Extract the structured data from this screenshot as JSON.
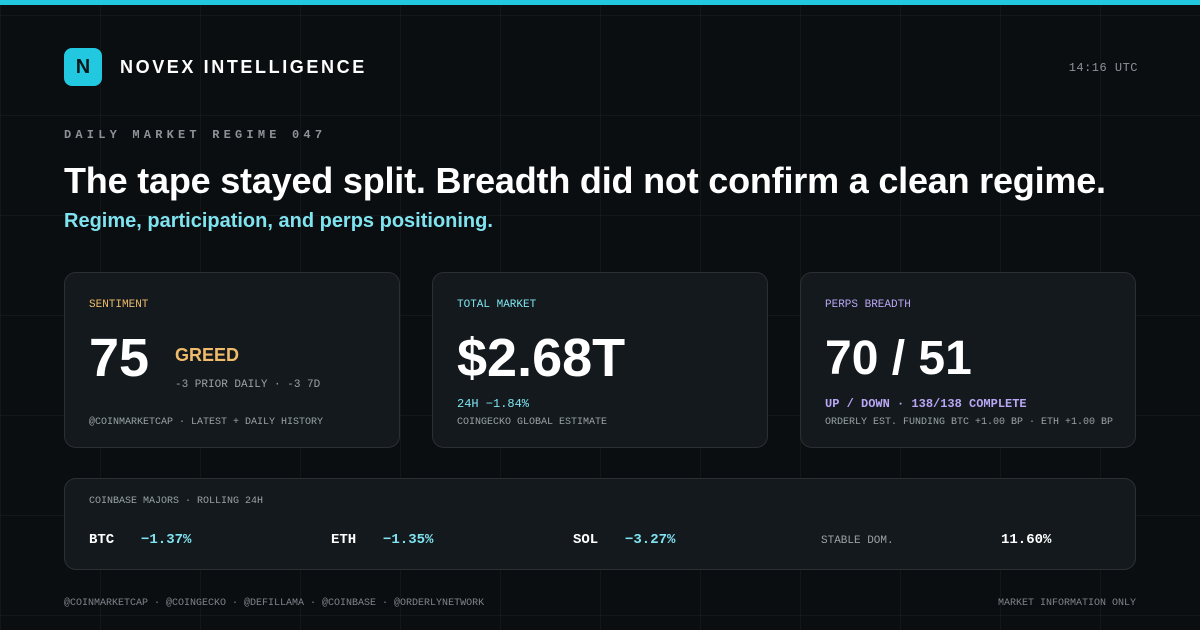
{
  "brand": {
    "logo": "N",
    "name": "NOVEX INTELLIGENCE",
    "time": "14:16 UTC"
  },
  "header": {
    "kicker": "DAILY MARKET REGIME 047",
    "title": "The tape stayed split. Breadth did not confirm a clean regime.",
    "subtitle": "Regime, participation, and perps positioning."
  },
  "cards": [
    {
      "label": "SENTIMENT",
      "value": "75",
      "badge": "GREED",
      "detail": "-3 PRIOR DAILY · -3 7D",
      "source": "@COINMARKETCAP · LATEST + DAILY HISTORY"
    },
    {
      "label": "TOTAL MARKET",
      "value": "$2.68T",
      "detail": "24H −1.84%",
      "source": "COINGECKO GLOBAL ESTIMATE"
    },
    {
      "label": "PERPS BREADTH",
      "value": "70 / 51",
      "detail": "UP / DOWN · 138/138 COMPLETE",
      "source": "ORDERLY EST. FUNDING BTC +1.00 BP · ETH +1.00 BP"
    }
  ],
  "majors": {
    "label": "COINBASE MAJORS · ROLLING 24H",
    "items": [
      {
        "name": "BTC",
        "value": "−1.37%"
      },
      {
        "name": "ETH",
        "value": "−1.35%"
      },
      {
        "name": "SOL",
        "value": "−3.27%"
      },
      {
        "name": "STABLE DOM.",
        "value": "11.60%"
      }
    ]
  },
  "footer": {
    "sources": "@COINMARKETCAP · @COINGECKO · @DEFILLAMA · @COINBASE · @ORDERLYNETWORK",
    "note": "MARKET INFORMATION ONLY"
  }
}
